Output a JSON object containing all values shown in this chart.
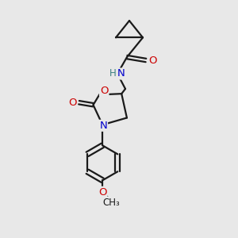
{
  "bg_color": "#e8e8e8",
  "bond_color": "#1a1a1a",
  "atom_colors": {
    "O": "#cc0000",
    "N": "#0000cc",
    "H": "#3a8080",
    "C": "#1a1a1a"
  },
  "font_size": 9.5,
  "fig_size": [
    3.0,
    3.0
  ],
  "dpi": 100
}
